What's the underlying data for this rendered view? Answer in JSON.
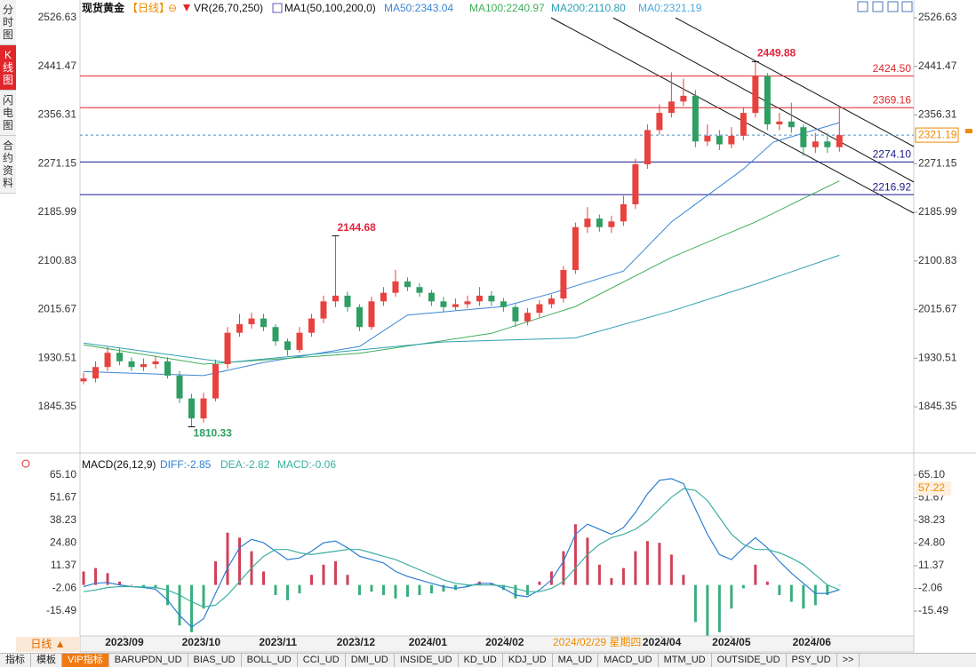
{
  "sidebar": [
    "分时图",
    "K线图",
    "闪电图",
    "合约资料"
  ],
  "header": {
    "symbol": "现货黄金",
    "period": "【日线】",
    "icon": "⊖",
    "vr": "VR(26,70,250)",
    "ma": "MA1(50,100,200,0)"
  },
  "chart_data": [
    {
      "type": "candlestick",
      "up_color": "#e8423f",
      "down_color": "#2e9e62",
      "xlim": [
        -0.3,
        69.2
      ],
      "xticks": [
        {
          "value": 3.4,
          "label": "2023/09"
        },
        {
          "value": 9.8,
          "label": "2023/10"
        },
        {
          "value": 16.2,
          "label": "2023/11"
        },
        {
          "value": 22.7,
          "label": "2023/12"
        },
        {
          "value": 28.7,
          "label": "2024/01"
        },
        {
          "value": 35.1,
          "label": "2024/02"
        },
        {
          "value": 48.2,
          "label": "2024/04"
        },
        {
          "value": 54,
          "label": "2024/05"
        },
        {
          "value": 60.7,
          "label": "2024/06"
        }
      ],
      "cursor_date": {
        "value": 42.8,
        "label": "2024/02/29 星期四"
      },
      "ylim": [
        1772.3,
        2539.1
      ],
      "yticks": [
        2526.63,
        2441.47,
        2356.31,
        2271.15,
        2185.99,
        2100.83,
        2015.67,
        1930.51,
        1845.35
      ],
      "open": [
        1890,
        1895,
        1915,
        1940,
        1925,
        1915,
        1920,
        1925,
        1900,
        1860,
        1825,
        1860,
        1920,
        1975,
        1990,
        2000,
        1985,
        1960,
        1945,
        1975,
        2000,
        2030,
        2040,
        2020,
        1985,
        2030,
        2045,
        2065,
        2055,
        2045,
        2030,
        2020,
        2025,
        2030,
        2040,
        2030,
        2020,
        1995,
        2010,
        2025,
        2035,
        2085,
        2160,
        2175,
        2160,
        2170,
        2200,
        2270,
        2330,
        2360,
        2380,
        2390,
        2310,
        2320,
        2305,
        2320,
        2360,
        2425,
        2340,
        2345,
        2335,
        2300,
        2310,
        2300
      ],
      "high": [
        1905,
        1925,
        1950,
        1948,
        1932,
        1930,
        1935,
        1932,
        1908,
        1868,
        1870,
        1928,
        1985,
        2008,
        2010,
        2008,
        1990,
        1965,
        1985,
        2008,
        2040,
        2144.68,
        2047,
        2025,
        2038,
        2055,
        2085,
        2072,
        2062,
        2050,
        2038,
        2035,
        2040,
        2055,
        2048,
        2036,
        2025,
        2018,
        2032,
        2042,
        2092,
        2168,
        2195,
        2182,
        2180,
        2215,
        2280,
        2340,
        2375,
        2431,
        2420,
        2400,
        2340,
        2330,
        2335,
        2370,
        2449.88,
        2430,
        2360,
        2378,
        2340,
        2325,
        2325,
        2368
      ],
      "low": [
        1885,
        1888,
        1908,
        1918,
        1908,
        1908,
        1912,
        1895,
        1852,
        1810.33,
        1818,
        1855,
        1912,
        1968,
        1982,
        1978,
        1952,
        1935,
        1940,
        1968,
        1992,
        2020,
        2012,
        1978,
        1980,
        2022,
        2038,
        2048,
        2038,
        2022,
        2012,
        2015,
        2018,
        2022,
        2022,
        2012,
        1985,
        1988,
        2002,
        2018,
        2028,
        2078,
        2150,
        2152,
        2150,
        2162,
        2192,
        2262,
        2322,
        2352,
        2372,
        2300,
        2302,
        2295,
        2298,
        2312,
        2352,
        2330,
        2330,
        2325,
        2285,
        2290,
        2290,
        2292
      ],
      "close": [
        1895,
        1915,
        1940,
        1925,
        1915,
        1920,
        1925,
        1900,
        1860,
        1825,
        1860,
        1920,
        1975,
        1990,
        2000,
        1985,
        1960,
        1945,
        1975,
        2000,
        2030,
        2040,
        2020,
        1985,
        2030,
        2045,
        2065,
        2055,
        2045,
        2030,
        2020,
        2025,
        2030,
        2040,
        2030,
        2020,
        1995,
        2010,
        2025,
        2035,
        2085,
        2160,
        2175,
        2160,
        2170,
        2200,
        2270,
        2330,
        2360,
        2380,
        2390,
        2310,
        2320,
        2305,
        2320,
        2360,
        2425,
        2340,
        2345,
        2335,
        2300,
        2310,
        2300,
        2321.19
      ],
      "series": [
        {
          "label": "MA50:2343.04",
          "color": "#3a86d4",
          "x": [
            0,
            10,
            15,
            23,
            27,
            35,
            39,
            45,
            49,
            55,
            57.5,
            63
          ],
          "values": [
            1907,
            1900,
            1923,
            1951,
            2006,
            2021,
            2044,
            2083,
            2169,
            2262,
            2309,
            2343.04
          ]
        },
        {
          "label": "MA100:2240.97",
          "color": "#3fae5a",
          "x": [
            0,
            10,
            23,
            34,
            41,
            49,
            56,
            63
          ],
          "values": [
            1954,
            1920,
            1939,
            1974,
            2021,
            2107,
            2169,
            2240.97
          ]
        },
        {
          "label": "MA200:2110.80",
          "color": "#2f9fb4",
          "x": [
            0,
            12,
            30,
            41,
            49,
            56,
            63
          ],
          "values": [
            1957,
            1923,
            1959,
            1966,
            2013,
            2060,
            2110.8
          ]
        }
      ],
      "ma0_label": "MA0:2321.19",
      "last_price": {
        "value": 2321.19,
        "label": "2321.19"
      },
      "levels": [
        {
          "value": 2424.5,
          "label": "2424.50",
          "color": "#e0262b"
        },
        {
          "value": 2369.16,
          "label": "2369.16",
          "color": "#e0262b"
        },
        {
          "value": 2274.1,
          "label": "2274.10",
          "color": "#1a1a8c"
        },
        {
          "value": 2216.92,
          "label": "2216.92",
          "color": "#1a1a8c"
        }
      ]
    },
    {
      "type": "macd",
      "title": "MACD(26,12,9)",
      "ylim": [
        -28.1,
        75.6
      ],
      "yticks": [
        {
          "value": 65.1,
          "label": "65.10"
        },
        51.67,
        38.23,
        {
          "value": 24.8,
          "label": "24.80"
        },
        11.37,
        -2.06,
        -15.49
      ],
      "cursor_value": 57.22,
      "series": [
        {
          "label": "DIFF:-2.85",
          "color": "#2d7fd0",
          "values": [
            -1,
            1,
            1.5,
            0,
            -1,
            -1.5,
            -2.5,
            -9,
            -18,
            -25,
            -20,
            -5,
            10,
            22,
            27,
            25,
            20,
            15,
            16,
            20,
            25,
            26,
            22,
            17,
            15,
            13,
            8,
            5,
            3,
            1,
            -1,
            -2,
            -1,
            1,
            1,
            -2,
            -6,
            -7,
            -3,
            3,
            14,
            30,
            36,
            33,
            30,
            34,
            43,
            54,
            62,
            63,
            60,
            45,
            30,
            18,
            15,
            22,
            28,
            22,
            14,
            7,
            1,
            -5,
            -5,
            -2.85
          ]
        },
        {
          "label": "DEA:-2.82",
          "color": "#3bb0a0",
          "values": [
            -4,
            -3,
            -1.5,
            -1,
            -1,
            -1.2,
            -1.5,
            -3,
            -6,
            -10,
            -13,
            -12,
            -6,
            2,
            10,
            17,
            21,
            21,
            19,
            18,
            19,
            20,
            21,
            21,
            19,
            17,
            15,
            12,
            9,
            6,
            3,
            1,
            0,
            0,
            0,
            -0.5,
            -2,
            -4,
            -4,
            -2,
            2,
            10,
            18,
            24,
            28,
            30,
            33,
            38,
            45,
            52,
            57,
            56,
            50,
            40,
            30,
            24,
            21,
            21,
            19,
            16,
            12,
            6,
            0,
            -2.82
          ]
        }
      ],
      "hist": {
        "label": "MACD:-0.06",
        "up_color": "#d0405a",
        "down_color": "#3aae7e",
        "values": [
          8,
          10,
          7,
          2,
          0,
          -1,
          -2,
          -12,
          -24,
          -28,
          -14,
          14,
          31,
          28,
          20,
          8,
          -6,
          -9,
          -5,
          6,
          12,
          14,
          6,
          -6,
          -4,
          -6,
          -8,
          -7,
          -6,
          -5,
          -4,
          -3,
          -1,
          2,
          1,
          -3,
          -8,
          -6,
          2,
          8,
          20,
          36,
          28,
          12,
          4,
          10,
          20,
          26,
          25,
          18,
          6,
          -22,
          -30,
          -28,
          -14,
          -2,
          12,
          2,
          -6,
          -10,
          -14,
          -12,
          -6,
          -0.06
        ]
      }
    }
  ],
  "bottom": {
    "period_tab": "日线",
    "tabs": [
      "指标",
      "模板",
      "VIP指标",
      "BARUPDN_UD",
      "BIAS_UD",
      "BOLL_UD",
      "CCI_UD",
      "DMI_UD",
      "INSIDE_UD",
      "KD_UD",
      "KDJ_UD",
      "MA_UD",
      "MACD_UD",
      "MTM_UD",
      "OUTSIDE_UD",
      "PSY_UD",
      ">>"
    ]
  }
}
